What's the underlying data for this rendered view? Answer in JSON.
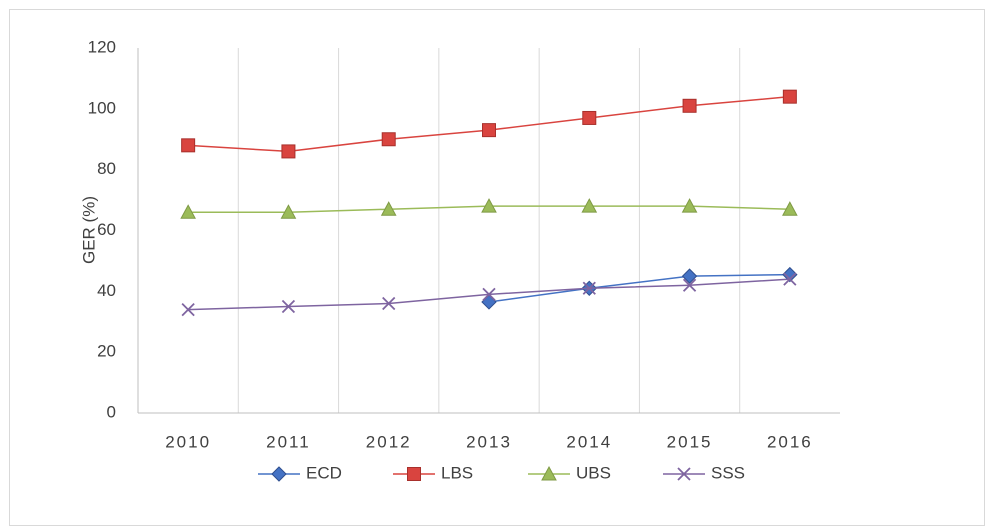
{
  "chart_data": {
    "type": "line",
    "y_label": "GER (%)",
    "categories": [
      "2010",
      "2011",
      "2012",
      "2013",
      "2014",
      "2015",
      "2016"
    ],
    "series": [
      {
        "name": "ECD",
        "color": "#4472c4",
        "marker": "diamond",
        "values": [
          null,
          null,
          null,
          36.5,
          41,
          45,
          45.5
        ]
      },
      {
        "name": "LBS",
        "color": "#d9443f",
        "marker": "square",
        "values": [
          88,
          86,
          90,
          93,
          97,
          101,
          104
        ]
      },
      {
        "name": "UBS",
        "color": "#9bbb59",
        "marker": "triangle",
        "values": [
          66,
          66,
          67,
          68,
          68,
          68,
          67
        ]
      },
      {
        "name": "SSS",
        "color": "#7e64a0",
        "marker": "x",
        "values": [
          34,
          35,
          36,
          39,
          41,
          42,
          44
        ]
      }
    ],
    "ylim": [
      0,
      120
    ],
    "yticks": [
      0,
      20,
      40,
      60,
      80,
      100,
      120
    ],
    "grid": "vertical",
    "legend": "bottom"
  }
}
